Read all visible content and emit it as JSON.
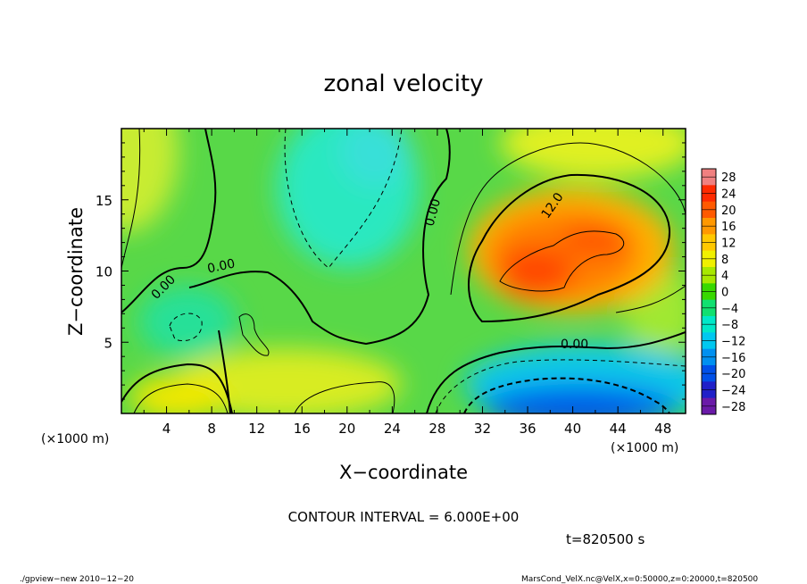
{
  "chart_data": {
    "type": "heatmap",
    "title": "zonal velocity",
    "xlabel": "X−coordinate",
    "ylabel": "Z−coordinate",
    "x_unit": "(×1000 m)",
    "z_unit": "(×1000 m)",
    "xlim": [
      0,
      50
    ],
    "ylim": [
      0,
      20
    ],
    "x_ticks": [
      4,
      8,
      12,
      16,
      20,
      24,
      28,
      32,
      36,
      40,
      44,
      48
    ],
    "y_ticks": [
      5,
      10,
      15
    ],
    "contour_interval_text": "CONTOUR INTERVAL = 6.000E+00",
    "time_text": "t=820500 s",
    "contour_labels": [
      "0.00",
      "0.00",
      "0.00",
      "12.0",
      "0.00"
    ],
    "colorbar": {
      "levels": [
        28,
        24,
        20,
        16,
        12,
        8,
        4,
        0,
        -4,
        -8,
        -12,
        -16,
        -20,
        -24,
        -28
      ],
      "labels": [
        "28",
        "24",
        "20",
        "16",
        "12",
        "8",
        "4",
        "0",
        "−4",
        "−8",
        "−12",
        "−16",
        "−20",
        "−24",
        "−28"
      ],
      "colors": [
        "#f08080",
        "#ff2a00",
        "#ff5a00",
        "#ff9800",
        "#ffc800",
        "#f0f000",
        "#a8e800",
        "#38d800",
        "#10e070",
        "#00e8c8",
        "#00c8f0",
        "#0090f0",
        "#0050e8",
        "#2020c8",
        "#6a1aa8"
      ]
    },
    "features": [
      {
        "kind": "max",
        "x": 37,
        "z": 10.2,
        "value": 21
      },
      {
        "kind": "max",
        "x": 43,
        "z": 12.4,
        "value": 18
      },
      {
        "kind": "min",
        "x": 39,
        "z": 0.8,
        "value": -14
      },
      {
        "kind": "min",
        "x": 19,
        "z": 16.5,
        "value": -8
      },
      {
        "kind": "min",
        "x": 5.5,
        "z": 6,
        "value": -7
      },
      {
        "kind": "max",
        "x": 6,
        "z": 1.2,
        "value": 9
      }
    ]
  },
  "footer": {
    "left": "./gpview−new   2010−12−20",
    "right": "MarsCond_VelX.nc@VelX,x=0:50000,z=0:20000,t=820500"
  }
}
